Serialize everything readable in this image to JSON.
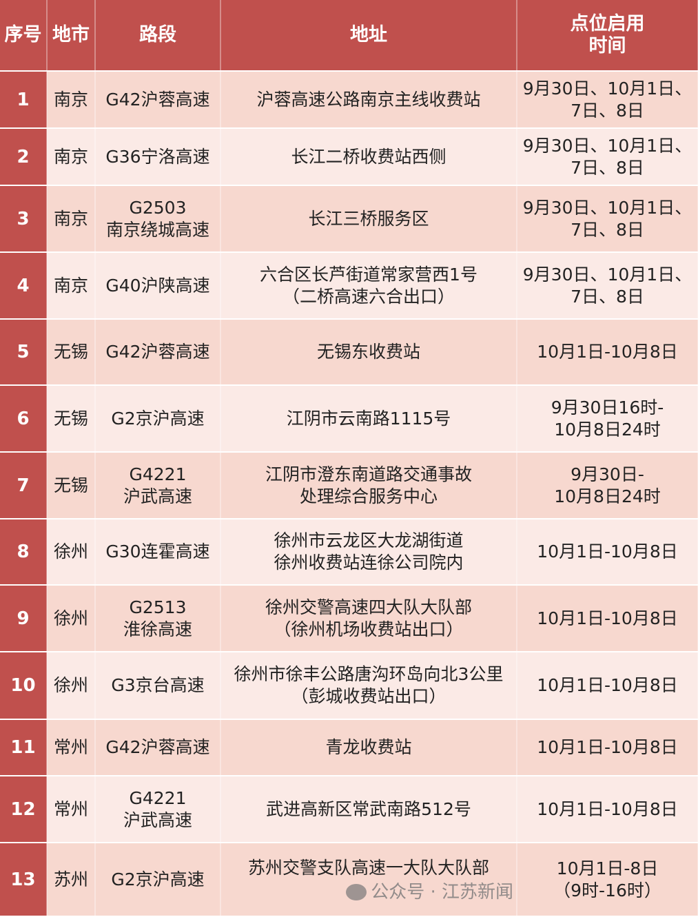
{
  "colors": {
    "header": "#c0504d",
    "row_odd": "#f7d8cf",
    "row_even": "#fbeae6"
  },
  "headers": [
    "序号",
    "地市",
    "路段",
    "地址",
    "点位启用\n时间"
  ],
  "rows": [
    [
      "1",
      "南京",
      "G42沪蓉高速",
      "沪蓉高速公路南京主线收费站",
      "9月30日、10月1日、\n7日、8日"
    ],
    [
      "2",
      "南京",
      "G36宁洛高速",
      "长江二桥收费站西侧",
      "9月30日、10月1日、\n7日、8日"
    ],
    [
      "3",
      "南京",
      "G2503\n南京绕城高速",
      "长江三桥服务区",
      "9月30日、10月1日、\n7日、8日"
    ],
    [
      "4",
      "南京",
      "G40沪陕高速",
      "六合区长芦街道常家营西1号\n（二桥高速六合出口）",
      "9月30日、10月1日、\n7日、8日"
    ],
    [
      "5",
      "无锡",
      "G42沪蓉高速",
      "无锡东收费站",
      "10月1日-10月8日"
    ],
    [
      "6",
      "无锡",
      "G2京沪高速",
      "江阴市云南路1115号",
      "9月30日16时-\n10月8日24时"
    ],
    [
      "7",
      "无锡",
      "G4221\n沪武高速",
      "江阴市澄东南道路交通事故\n处理综合服务中心",
      "9月30日-\n10月8日24时"
    ],
    [
      "8",
      "徐州",
      "G30连霍高速",
      "徐州市云龙区大龙湖街道\n徐州收费站连徐公司院内",
      "10月1日-10月8日"
    ],
    [
      "9",
      "徐州",
      "G2513\n淮徐高速",
      "徐州交警高速四大队大队部\n（徐州机场收费站出口）",
      "10月1日-10月8日"
    ],
    [
      "10",
      "徐州",
      "G3京台高速",
      "徐州市徐丰公路唐沟环岛向北3公里\n（彭城收费站出口）",
      "10月1日-10月8日"
    ],
    [
      "11",
      "常州",
      "G42沪蓉高速",
      "青龙收费站",
      "10月1日-10月8日"
    ],
    [
      "12",
      "常州",
      "G4221\n沪武高速",
      "武进高新区常武南路512号",
      "10月1日-10月8日"
    ],
    [
      "13",
      "苏州",
      "G2京沪高速",
      "苏州交警支队高速一大队大队部",
      "10月1日-8日\n（9时-16时）"
    ]
  ],
  "watermark": "公众号 · 江苏新闻"
}
